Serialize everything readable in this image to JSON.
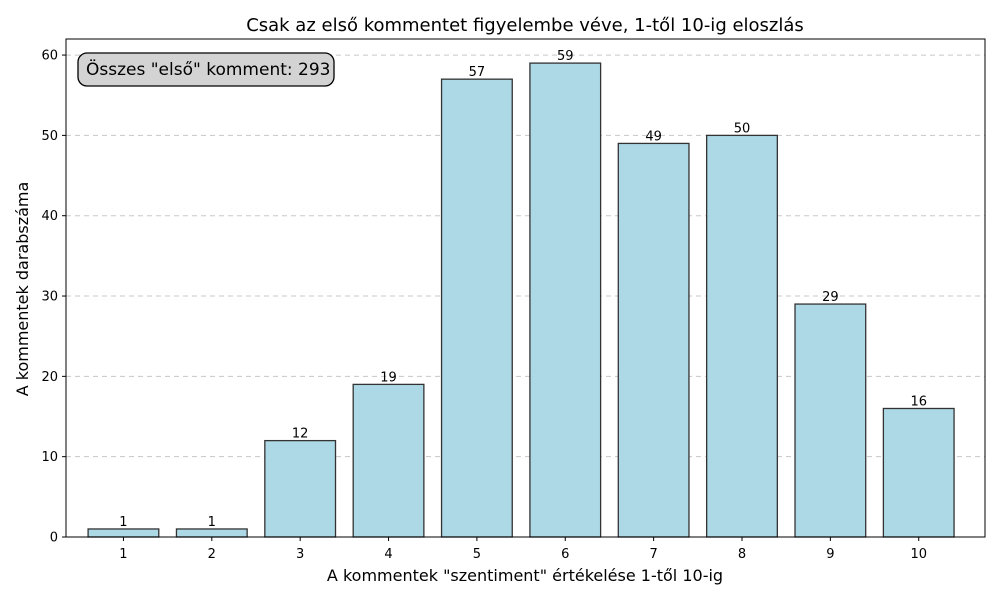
{
  "chart_data": {
    "type": "bar",
    "title": "Csak az első kommentet figyelembe véve, 1-től 10-ig eloszlás",
    "xlabel": "A kommentek \"szentiment\" értékelése 1-től 10-ig",
    "ylabel": "A kommentek darabszáma",
    "categories": [
      1,
      2,
      3,
      4,
      5,
      6,
      7,
      8,
      9,
      10
    ],
    "values": [
      1,
      1,
      12,
      19,
      57,
      59,
      49,
      50,
      29,
      16
    ],
    "ylim": [
      0,
      62
    ],
    "yticks": [
      0,
      10,
      20,
      30,
      40,
      50,
      60
    ],
    "grid": "y-dashed",
    "annotation": "Összes \"első\" komment: 293",
    "annotation_position": "top-left",
    "bar_color": "#add8e6",
    "edge_color": "#333333"
  }
}
